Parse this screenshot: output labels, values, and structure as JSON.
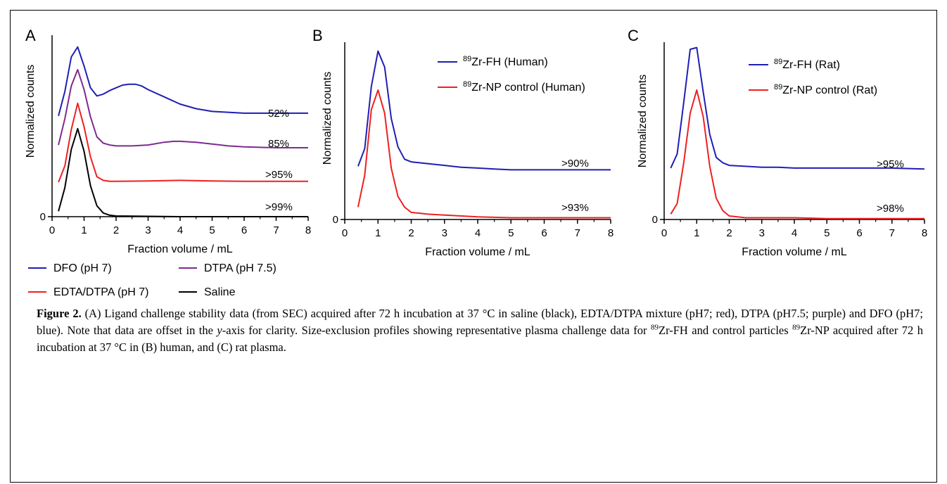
{
  "panels": [
    {
      "letter": "A",
      "ylabel": "Normalized counts",
      "xlabel": "Fraction volume / mL",
      "xticks": [
        "0",
        "1",
        "2",
        "3",
        "4",
        "5",
        "6",
        "7",
        "8"
      ],
      "ytick_zero": "0",
      "legend": [
        {
          "label": "DFO (pH 7)",
          "color": "#1f1fb4"
        },
        {
          "label": "DTPA (pH 7.5)",
          "color": "#7f2a8f"
        },
        {
          "label": "EDTA/DTPA (pH 7)",
          "color": "#ee2020"
        },
        {
          "label": "Saline",
          "color": "#000000"
        }
      ]
    },
    {
      "letter": "B",
      "ylabel": "Normalized counts",
      "xlabel": "Fraction volume / mL",
      "xticks": [
        "0",
        "1",
        "2",
        "3",
        "4",
        "5",
        "6",
        "7",
        "8"
      ],
      "ytick_zero": "0",
      "legend": [
        {
          "sup": "89",
          "label": "Zr-FH (Human)",
          "color": "#1f1fb4"
        },
        {
          "sup": "89",
          "label": "Zr-NP control (Human)",
          "color": "#ee2020"
        }
      ]
    },
    {
      "letter": "C",
      "ylabel": "Normalized counts",
      "xlabel": "Fraction volume / mL",
      "xticks": [
        "0",
        "1",
        "2",
        "3",
        "4",
        "5",
        "6",
        "7",
        "8"
      ],
      "ytick_zero": "0",
      "legend": [
        {
          "sup": "89",
          "label": "Zr-FH (Rat)",
          "color": "#1f1fb4"
        },
        {
          "sup": "89",
          "label": "Zr-NP control (Rat)",
          "color": "#ee2020"
        }
      ]
    }
  ],
  "chart_data": [
    {
      "type": "line",
      "title": "",
      "xlabel": "Fraction volume / mL",
      "ylabel": "Normalized counts",
      "xlim": [
        0,
        8
      ],
      "ylim": [
        0,
        1
      ],
      "series": [
        {
          "name": "DFO (pH 7)",
          "color": "#1f1fb4",
          "annotation": "52%",
          "x": [
            0.2,
            0.4,
            0.6,
            0.8,
            1.0,
            1.2,
            1.4,
            1.6,
            1.8,
            2.0,
            2.2,
            2.4,
            2.6,
            2.8,
            3.0,
            3.5,
            4.0,
            4.5,
            5.0,
            6.0,
            7.0,
            8.0
          ],
          "y": [
            0.555,
            0.69,
            0.88,
            0.935,
            0.83,
            0.71,
            0.665,
            0.675,
            0.695,
            0.71,
            0.725,
            0.73,
            0.73,
            0.72,
            0.7,
            0.66,
            0.62,
            0.595,
            0.58,
            0.57,
            0.57,
            0.57
          ]
        },
        {
          "name": "DTPA (pH 7.5)",
          "color": "#7f2a8f",
          "annotation": "85%",
          "x": [
            0.2,
            0.4,
            0.6,
            0.8,
            1.0,
            1.2,
            1.4,
            1.6,
            1.8,
            2.0,
            2.5,
            3.0,
            3.5,
            3.8,
            4.0,
            4.5,
            5.0,
            5.5,
            6.0,
            7.0,
            8.0
          ],
          "y": [
            0.395,
            0.54,
            0.72,
            0.81,
            0.7,
            0.55,
            0.44,
            0.405,
            0.395,
            0.39,
            0.39,
            0.395,
            0.41,
            0.415,
            0.415,
            0.41,
            0.4,
            0.39,
            0.385,
            0.38,
            0.38
          ]
        },
        {
          "name": "EDTA/DTPA (pH 7)",
          "color": "#ee2020",
          "annotation": ">95%",
          "x": [
            0.2,
            0.4,
            0.6,
            0.8,
            1.0,
            1.2,
            1.4,
            1.6,
            1.8,
            2.0,
            3.0,
            4.0,
            5.0,
            6.0,
            7.0,
            8.0
          ],
          "y": [
            0.19,
            0.28,
            0.48,
            0.625,
            0.495,
            0.33,
            0.22,
            0.2,
            0.195,
            0.195,
            0.197,
            0.2,
            0.197,
            0.195,
            0.195,
            0.195
          ]
        },
        {
          "name": "Saline",
          "color": "#000000",
          "annotation": ">99%",
          "x": [
            0.2,
            0.4,
            0.6,
            0.8,
            1.0,
            1.2,
            1.4,
            1.6,
            1.8,
            2.0,
            3.0,
            4.0,
            5.0,
            6.0,
            7.0,
            8.0
          ],
          "y": [
            0.03,
            0.16,
            0.37,
            0.485,
            0.36,
            0.17,
            0.06,
            0.02,
            0.008,
            0.004,
            0.002,
            0.0,
            0.0,
            0.0,
            0.0,
            0.0
          ]
        }
      ]
    },
    {
      "type": "line",
      "title": "",
      "xlabel": "Fraction volume / mL",
      "ylabel": "Normalized counts",
      "xlim": [
        0,
        8
      ],
      "ylim": [
        0,
        1
      ],
      "series": [
        {
          "name": "89Zr-FH (Human)",
          "color": "#1f1fb4",
          "annotation": ">90%",
          "x": [
            0.4,
            0.6,
            0.8,
            1.0,
            1.2,
            1.4,
            1.6,
            1.8,
            2.0,
            2.5,
            3.0,
            3.5,
            4.0,
            4.5,
            5.0,
            6.0,
            7.0,
            8.0
          ],
          "y": [
            0.3,
            0.4,
            0.75,
            0.95,
            0.86,
            0.57,
            0.41,
            0.34,
            0.325,
            0.315,
            0.305,
            0.295,
            0.29,
            0.285,
            0.28,
            0.28,
            0.28,
            0.28
          ]
        },
        {
          "name": "89Zr-NP control (Human)",
          "color": "#ee2020",
          "annotation": ">93%",
          "x": [
            0.4,
            0.6,
            0.8,
            1.0,
            1.2,
            1.4,
            1.6,
            1.8,
            2.0,
            2.5,
            3.0,
            4.0,
            5.0,
            6.0,
            7.0,
            8.0
          ],
          "y": [
            0.07,
            0.25,
            0.62,
            0.73,
            0.6,
            0.29,
            0.13,
            0.07,
            0.04,
            0.03,
            0.025,
            0.015,
            0.01,
            0.01,
            0.01,
            0.01
          ]
        }
      ]
    },
    {
      "type": "line",
      "title": "",
      "xlabel": "Fraction volume / mL",
      "ylabel": "Normalized counts",
      "xlim": [
        0,
        8
      ],
      "ylim": [
        0,
        1
      ],
      "series": [
        {
          "name": "89Zr-FH (Rat)",
          "color": "#1f1fb4",
          "annotation": ">95%",
          "x": [
            0.2,
            0.4,
            0.6,
            0.8,
            1.0,
            1.2,
            1.4,
            1.6,
            1.8,
            2.0,
            2.5,
            3.0,
            3.5,
            4.0,
            5.0,
            6.0,
            7.0,
            8.0
          ],
          "y": [
            0.29,
            0.37,
            0.66,
            0.96,
            0.97,
            0.72,
            0.48,
            0.35,
            0.32,
            0.305,
            0.3,
            0.295,
            0.295,
            0.29,
            0.29,
            0.29,
            0.29,
            0.285
          ]
        },
        {
          "name": "89Zr-NP control (Rat)",
          "color": "#ee2020",
          "annotation": ">98%",
          "x": [
            0.2,
            0.4,
            0.6,
            0.8,
            1.0,
            1.2,
            1.4,
            1.6,
            1.8,
            2.0,
            2.5,
            3.0,
            4.0,
            5.0,
            6.0,
            7.0,
            8.0
          ],
          "y": [
            0.03,
            0.09,
            0.32,
            0.6,
            0.73,
            0.58,
            0.3,
            0.12,
            0.05,
            0.02,
            0.01,
            0.01,
            0.01,
            0.005,
            0.005,
            0.005,
            0.005
          ]
        }
      ]
    }
  ],
  "caption": {
    "label": "Figure 2.",
    "p1": " (A) Ligand challenge stability data (from SEC) acquired after 72 h incubation at 37 °C in saline (black), EDTA/DTPA mixture (pH7; red), DTPA (pH7.5; purple) and DFO (pH7; blue). Note that data are offset in the ",
    "italic": "y",
    "p2": "-axis for clarity. Size-exclusion profiles showing representative plasma challenge data for ",
    "sup1": "89",
    "p3": "Zr-FH and control particles ",
    "sup2": "89",
    "p4": "Zr-NP acquired after 72 h incubation at 37 °C in (B) human, and (C) rat plasma."
  }
}
